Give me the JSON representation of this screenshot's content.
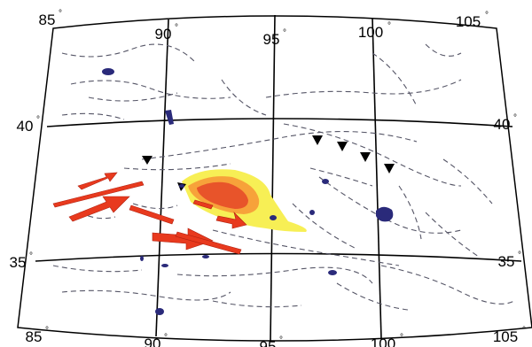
{
  "map": {
    "longitude_labels_top": [
      "85",
      "90",
      "95",
      "100",
      "105"
    ],
    "longitude_labels_bottom": [
      "85",
      "90",
      "95",
      "100",
      "105"
    ],
    "latitude_labels_left": [
      "40",
      "35"
    ],
    "latitude_labels_right": [
      "40",
      "35"
    ],
    "degree_symbol": "°"
  },
  "colors": {
    "arrow_red": "#e83a1e",
    "deformation_outer": "#f7ef55",
    "deformation_mid": "#f7a23a",
    "deformation_inner": "#e8542a",
    "lake_blue": "#2a2a7a",
    "fault_gray": "#555566"
  },
  "icons": [
    "thrust-triangle-icon",
    "slip-arrow-icon"
  ]
}
